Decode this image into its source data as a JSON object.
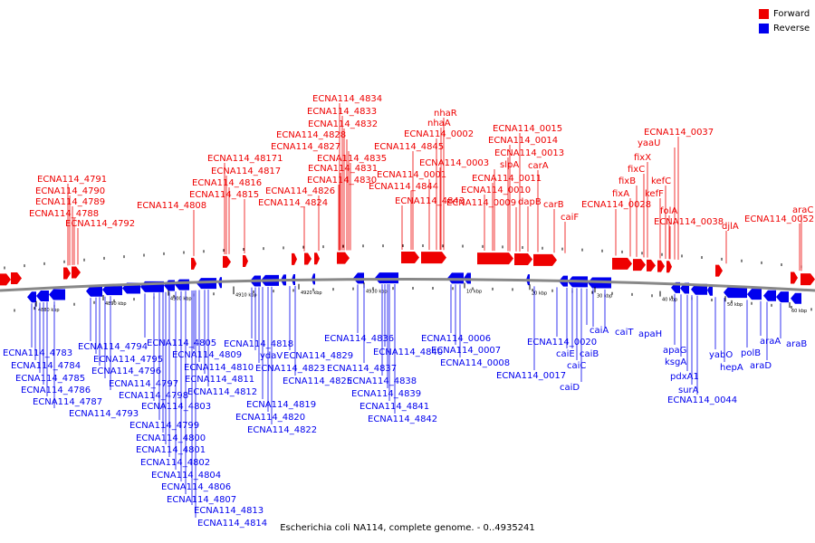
{
  "legend": [
    {
      "label": "Forward",
      "color": "#ee0000"
    },
    {
      "label": "Reverse",
      "color": "#0000ee"
    }
  ],
  "caption": "Escherichia coli NA114, complete genome. - 0..4935241",
  "colors": {
    "forward": "#ee0000",
    "reverse": "#0000ee",
    "backbone": "#888888"
  },
  "scale_ticks": [
    "4880 kbp",
    "4890 kbp",
    "4900 kbp",
    "4910 kbp",
    "4920 kbp",
    "4930 kbp",
    "10 kbp",
    "20 kbp",
    "30 kbp",
    "40 kbp",
    "50 kbp",
    "60 kbp"
  ],
  "forward_labels": [
    "ECNA114_4791",
    "ECNA114_4790",
    "ECNA114_4789",
    "ECNA114_4788",
    "ECNA114_4792",
    "ECNA114_4808",
    "ECNA114_48171",
    "ECNA114_4817",
    "ECNA114_4816",
    "ECNA114_4815",
    "ECNA114_4834",
    "ECNA114_4833",
    "ECNA114_4832",
    "ECNA114_4828",
    "ECNA114_4827",
    "ECNA114_4835",
    "ECNA114_4831",
    "ECNA114_4830",
    "ECNA114_4826",
    "ECNA114_4824",
    "nhaR",
    "nhaA",
    "ECNA114_0002",
    "ECNA114_4845",
    "ECNA114_0003",
    "ECNA114_0001",
    "ECNA114_4844",
    "ECNA114_4843",
    "ECNA114_0015",
    "ECNA114_0014",
    "ECNA114_0013",
    "slpA",
    "carA",
    "ECNA114_0011",
    "ECNA114_0010",
    "dapB",
    "ECNA114_0009",
    "carB",
    "caiF",
    "ECNA114_0037",
    "yaaU",
    "fixX",
    "fixC",
    "fixB",
    "fixA",
    "kefC",
    "kefF",
    "ECNA114_0028",
    "folA",
    "ECNA114_0038",
    "djlA",
    "araC",
    "ECNA114_0052"
  ],
  "reverse_labels": [
    "ECNA114_4783",
    "ECNA114_4784",
    "ECNA114_4785",
    "ECNA114_4786",
    "ECNA114_4787",
    "ECNA114_4793",
    "ECNA114_4794",
    "ECNA114_4795",
    "ECNA114_4796",
    "ECNA114_4797",
    "ECNA114_4798",
    "ECNA114_4805",
    "ECNA114_4809",
    "ECNA114_4810",
    "ECNA114_4811",
    "ECNA114_4812",
    "ECNA114_4803",
    "ECNA114_4799",
    "ECNA114_4800",
    "ECNA114_4801",
    "ECNA114_4802",
    "ECNA114_4804",
    "ECNA114_4806",
    "ECNA114_4807",
    "ECNA114_4813",
    "ECNA114_4814",
    "ECNA114_4818",
    "ydaV",
    "ECNA114_4823",
    "ECNA114_4819",
    "ECNA114_4820",
    "ECNA114_4822",
    "ECNA114_4829",
    "ECNA114_4825",
    "ECNA114_4836",
    "ECNA114_4840",
    "ECNA114_4837",
    "ECNA114_4838",
    "ECNA114_4839",
    "ECNA114_4841",
    "ECNA114_4842",
    "ECNA114_0006",
    "ECNA114_0007",
    "ECNA114_0008",
    "ECNA114_0017",
    "ECNA114_0020",
    "caiE",
    "caiB",
    "caiC",
    "caiD",
    "caiA",
    "caiT",
    "apaH",
    "apaG",
    "ksgA",
    "pdxA1",
    "surA",
    "ECNA114_0044",
    "yabO",
    "hepA",
    "polB",
    "araA",
    "araD",
    "araB"
  ]
}
